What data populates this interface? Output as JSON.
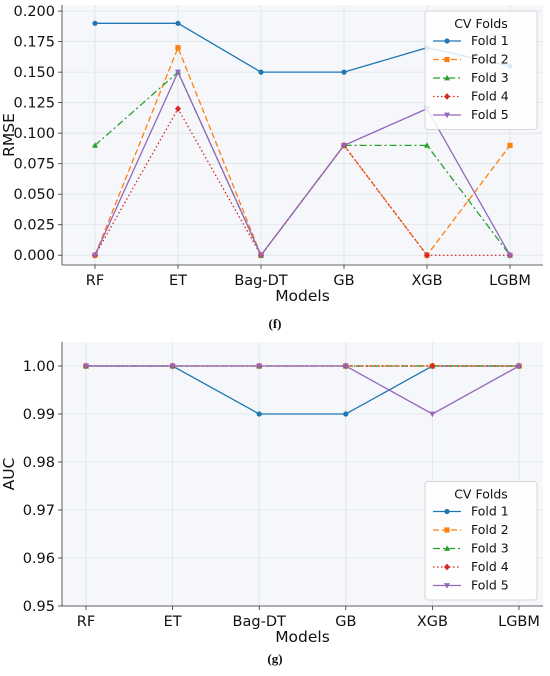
{
  "chart_data": [
    {
      "type": "line",
      "caption": "(f)",
      "xlabel": "Models",
      "ylabel": "RMSE",
      "categories": [
        "RF",
        "ET",
        "Bag-DT",
        "GB",
        "XGB",
        "LGBM"
      ],
      "ylim": [
        -0.008,
        0.205
      ],
      "yticks": [
        0.0,
        0.025,
        0.05,
        0.075,
        0.1,
        0.125,
        0.15,
        0.175,
        0.2
      ],
      "ytick_labels": [
        "0.000",
        "0.025",
        "0.050",
        "0.075",
        "0.100",
        "0.125",
        "0.150",
        "0.175",
        "0.200"
      ],
      "grid": true,
      "legend": {
        "title": "CV Folds",
        "placement": "top-right"
      },
      "series": [
        {
          "name": "Fold 1",
          "color": "#1f77b4",
          "dash": "solid",
          "marker": "circle",
          "values": [
            0.19,
            0.19,
            0.15,
            0.15,
            0.17,
            0.155
          ]
        },
        {
          "name": "Fold 2",
          "color": "#ff7f0e",
          "dash": "dashed",
          "marker": "square",
          "values": [
            0.0,
            0.17,
            0.0,
            0.09,
            0.0,
            0.09
          ]
        },
        {
          "name": "Fold 3",
          "color": "#2ca02c",
          "dash": "dashdot",
          "marker": "triangle",
          "values": [
            0.09,
            0.15,
            0.0,
            0.09,
            0.09,
            0.0
          ]
        },
        {
          "name": "Fold 4",
          "color": "#d62728",
          "dash": "dotted",
          "marker": "diamond",
          "values": [
            0.0,
            0.12,
            0.0,
            0.09,
            0.0,
            0.0
          ]
        },
        {
          "name": "Fold 5",
          "color": "#9467bd",
          "dash": "solid",
          "marker": "triangle-down",
          "values": [
            0.0,
            0.15,
            0.0,
            0.09,
            0.12,
            0.0
          ]
        }
      ]
    },
    {
      "type": "line",
      "caption": "(g)",
      "xlabel": "Models",
      "ylabel": "AUC",
      "categories": [
        "RF",
        "ET",
        "Bag-DT",
        "GB",
        "XGB",
        "LGBM"
      ],
      "ylim": [
        0.95,
        1.005
      ],
      "yticks": [
        0.95,
        0.96,
        0.97,
        0.98,
        0.99,
        1.0
      ],
      "ytick_labels": [
        "0.95",
        "0.96",
        "0.97",
        "0.98",
        "0.99",
        "1.00"
      ],
      "grid": true,
      "legend": {
        "title": "CV Folds",
        "placement": "bottom-right"
      },
      "series": [
        {
          "name": "Fold 1",
          "color": "#1f77b4",
          "dash": "solid",
          "marker": "circle",
          "values": [
            1.0,
            1.0,
            0.99,
            0.99,
            1.0,
            1.0
          ]
        },
        {
          "name": "Fold 2",
          "color": "#ff7f0e",
          "dash": "dashed",
          "marker": "square",
          "values": [
            1.0,
            1.0,
            1.0,
            1.0,
            1.0,
            1.0
          ]
        },
        {
          "name": "Fold 3",
          "color": "#2ca02c",
          "dash": "dashdot",
          "marker": "triangle",
          "values": [
            1.0,
            1.0,
            1.0,
            1.0,
            1.0,
            1.0
          ]
        },
        {
          "name": "Fold 4",
          "color": "#d62728",
          "dash": "dotted",
          "marker": "diamond",
          "values": [
            1.0,
            1.0,
            1.0,
            1.0,
            1.0,
            1.0
          ]
        },
        {
          "name": "Fold 5",
          "color": "#9467bd",
          "dash": "solid",
          "marker": "triangle-down",
          "values": [
            1.0,
            1.0,
            1.0,
            1.0,
            0.99,
            1.0
          ]
        }
      ]
    }
  ]
}
